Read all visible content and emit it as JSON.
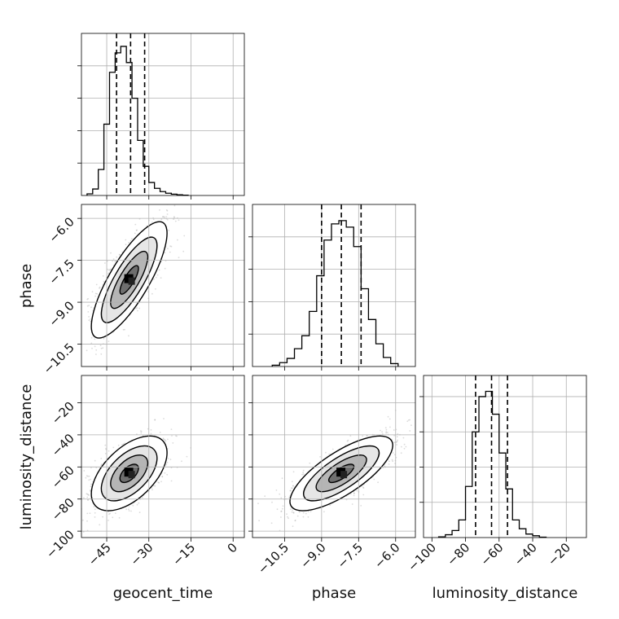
{
  "chart_data": {
    "type": "corner",
    "parameters": [
      "geocent_time",
      "phase",
      "luminosity_distance"
    ],
    "colors": {
      "hist": "#000000",
      "points": "#9a9a9a",
      "grid": "#b0b0b0",
      "frame": "#000000"
    },
    "grid": true,
    "quantile_lines": "dashed",
    "diagonal": [
      {
        "param": "geocent_time",
        "xlim": [
          -54,
          4
        ],
        "ticks": [
          -45,
          -30,
          -15,
          0
        ],
        "tick_labels": [
          "−45",
          "−30",
          "−15",
          "0"
        ],
        "ymax": 5.0,
        "bin_edges": [
          -52,
          -50,
          -48,
          -46,
          -44,
          -42,
          -40,
          -38,
          -36,
          -34,
          -32,
          -30,
          -28,
          -26,
          -24,
          -22,
          -20,
          -18,
          -16
        ],
        "counts": [
          0.05,
          0.2,
          0.8,
          2.2,
          3.8,
          4.4,
          4.6,
          4.1,
          3.0,
          1.7,
          0.9,
          0.4,
          0.22,
          0.12,
          0.07,
          0.04,
          0.02,
          0.01
        ],
        "quantiles": [
          -41.5,
          -36.5,
          -31.5
        ]
      },
      {
        "param": "phase",
        "xlim": [
          -11.8,
          -5.2
        ],
        "ticks": [
          -10.5,
          -9.0,
          -7.5,
          -6.0
        ],
        "tick_labels": [
          "−10.5",
          "−9.0",
          "−7.5",
          "−6.0"
        ],
        "ymax": 5.0,
        "bin_edges": [
          -11.0,
          -10.7,
          -10.4,
          -10.1,
          -9.8,
          -9.5,
          -9.2,
          -8.9,
          -8.6,
          -8.3,
          -8.0,
          -7.7,
          -7.4,
          -7.1,
          -6.8,
          -6.5,
          -6.2,
          -5.9
        ],
        "counts": [
          0.04,
          0.12,
          0.25,
          0.55,
          0.95,
          1.7,
          2.8,
          3.9,
          4.4,
          4.5,
          4.3,
          3.7,
          2.4,
          1.45,
          0.7,
          0.28,
          0.09
        ],
        "quantiles": [
          -9.0,
          -8.2,
          -7.4
        ]
      },
      {
        "param": "luminosity_distance",
        "xlim": [
          -105,
          -8
        ],
        "ticks": [
          -100,
          -80,
          -60,
          -40,
          -20
        ],
        "tick_labels": [
          "−100",
          "−80",
          "−60",
          "−40",
          "−20"
        ],
        "ymax": 4.6,
        "bin_edges": [
          -96,
          -92,
          -88,
          -84,
          -80,
          -76,
          -72,
          -68,
          -64,
          -60,
          -56,
          -52,
          -48,
          -44,
          -40,
          -36,
          -32
        ],
        "counts": [
          0.02,
          0.08,
          0.2,
          0.5,
          1.45,
          3.0,
          4.0,
          4.15,
          3.5,
          2.4,
          1.38,
          0.5,
          0.25,
          0.1,
          0.05,
          0.01
        ],
        "quantiles": [
          -74,
          -64.5,
          -55
        ]
      }
    ],
    "pairs": [
      {
        "x": "geocent_time",
        "y": "phase",
        "x_mean": -37,
        "y_mean": -8.2,
        "x_sd": 5.5,
        "y_sd": 0.85,
        "corr": 0.8
      },
      {
        "x": "geocent_time",
        "y": "luminosity_distance",
        "x_mean": -37,
        "y_mean": -64,
        "x_sd": 5.5,
        "y_sd": 9.5,
        "corr": 0.55
      },
      {
        "x": "phase",
        "y": "luminosity_distance",
        "x_mean": -8.2,
        "y_mean": -64,
        "x_sd": 0.85,
        "y_sd": 9.5,
        "corr": 0.75
      }
    ],
    "row_ranges": {
      "phase": {
        "ylim": [
          -11.3,
          -5.5
        ],
        "ticks": [
          -10.5,
          -9.0,
          -7.5,
          -6.0
        ],
        "tick_labels": [
          "−10.5",
          "−9.0",
          "−7.5",
          "−6.0"
        ]
      },
      "luminosity_distance": {
        "ylim": [
          -104,
          -3
        ],
        "ticks": [
          -100,
          -80,
          -60,
          -40,
          -20
        ],
        "tick_labels": [
          "−100",
          "−80",
          "−60",
          "−40",
          "−20"
        ]
      }
    },
    "xlabels": [
      "geocent_time",
      "phase",
      "luminosity_distance"
    ],
    "ylabels": [
      "phase",
      "luminosity_distance"
    ]
  }
}
